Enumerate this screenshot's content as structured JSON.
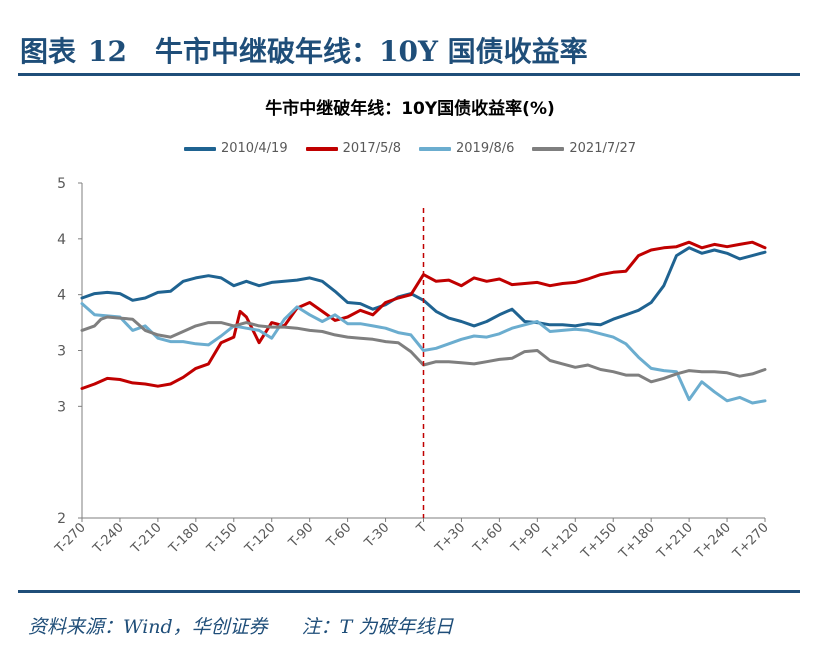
{
  "figure": {
    "label": "图表",
    "number": "12",
    "title": "牛市中继破年线：10Y 国债收益率"
  },
  "source": {
    "text": "资料来源：Wind，华创证券",
    "note": "注：T 为破年线日"
  },
  "chart_data": {
    "type": "line",
    "title": "牛市中继破年线：10Y国债收益率(%)",
    "xlabel": "",
    "ylabel": "",
    "x_range": [
      -270,
      270
    ],
    "ylim": [
      2,
      5
    ],
    "y_ticks": [
      "5",
      "4",
      "4",
      "3",
      "3",
      "2"
    ],
    "y_tick_values": [
      5,
      4.5,
      4,
      3.5,
      3,
      2
    ],
    "x_ticks": [
      "T-270",
      "T-240",
      "T-210",
      "T-180",
      "T-150",
      "T-120",
      "T-90",
      "T-60",
      "T-30",
      "T",
      "T+30",
      "T+60",
      "T+90",
      "T+120",
      "T+150",
      "T+180",
      "T+210",
      "T+240",
      "T+270"
    ],
    "x_tick_values": [
      -270,
      -240,
      -210,
      -180,
      -150,
      -120,
      -90,
      -60,
      -30,
      0,
      30,
      60,
      90,
      120,
      150,
      180,
      210,
      240,
      270
    ],
    "event_marker": {
      "x": 0,
      "style": "dashed",
      "color": "#c00000"
    },
    "grid": false,
    "legend_position": "top",
    "series": [
      {
        "name": "2010/4/19",
        "color": "#1f6391",
        "points": [
          [
            -270,
            3.97
          ],
          [
            -260,
            4.01
          ],
          [
            -250,
            4.02
          ],
          [
            -240,
            4.01
          ],
          [
            -230,
            3.95
          ],
          [
            -220,
            3.97
          ],
          [
            -210,
            4.02
          ],
          [
            -200,
            4.03
          ],
          [
            -190,
            4.12
          ],
          [
            -180,
            4.15
          ],
          [
            -170,
            4.17
          ],
          [
            -160,
            4.15
          ],
          [
            -150,
            4.08
          ],
          [
            -140,
            4.12
          ],
          [
            -130,
            4.08
          ],
          [
            -120,
            4.11
          ],
          [
            -110,
            4.12
          ],
          [
            -100,
            4.13
          ],
          [
            -90,
            4.15
          ],
          [
            -80,
            4.12
          ],
          [
            -70,
            4.03
          ],
          [
            -60,
            3.93
          ],
          [
            -50,
            3.92
          ],
          [
            -40,
            3.87
          ],
          [
            -30,
            3.91
          ],
          [
            -20,
            3.98
          ],
          [
            -10,
            4.01
          ],
          [
            0,
            3.95
          ],
          [
            10,
            3.85
          ],
          [
            20,
            3.79
          ],
          [
            30,
            3.76
          ],
          [
            40,
            3.72
          ],
          [
            50,
            3.76
          ],
          [
            60,
            3.82
          ],
          [
            70,
            3.87
          ],
          [
            80,
            3.76
          ],
          [
            90,
            3.75
          ],
          [
            100,
            3.73
          ],
          [
            110,
            3.73
          ],
          [
            120,
            3.72
          ],
          [
            130,
            3.74
          ],
          [
            140,
            3.73
          ],
          [
            150,
            3.78
          ],
          [
            160,
            3.82
          ],
          [
            170,
            3.86
          ],
          [
            180,
            3.93
          ],
          [
            190,
            4.08
          ],
          [
            200,
            4.35
          ],
          [
            210,
            4.42
          ],
          [
            220,
            4.37
          ],
          [
            230,
            4.4
          ],
          [
            240,
            4.37
          ],
          [
            250,
            4.32
          ],
          [
            260,
            4.35
          ],
          [
            270,
            4.38
          ]
        ]
      },
      {
        "name": "2017/5/8",
        "color": "#c00000",
        "points": [
          [
            -270,
            3.16
          ],
          [
            -260,
            3.2
          ],
          [
            -250,
            3.25
          ],
          [
            -240,
            3.24
          ],
          [
            -230,
            3.21
          ],
          [
            -220,
            3.2
          ],
          [
            -210,
            3.18
          ],
          [
            -200,
            3.2
          ],
          [
            -190,
            3.26
          ],
          [
            -180,
            3.34
          ],
          [
            -170,
            3.38
          ],
          [
            -160,
            3.57
          ],
          [
            -150,
            3.62
          ],
          [
            -145,
            3.85
          ],
          [
            -140,
            3.8
          ],
          [
            -130,
            3.57
          ],
          [
            -120,
            3.75
          ],
          [
            -110,
            3.72
          ],
          [
            -100,
            3.88
          ],
          [
            -90,
            3.93
          ],
          [
            -80,
            3.85
          ],
          [
            -70,
            3.77
          ],
          [
            -60,
            3.8
          ],
          [
            -50,
            3.86
          ],
          [
            -40,
            3.82
          ],
          [
            -30,
            3.93
          ],
          [
            -20,
            3.97
          ],
          [
            -10,
            4.0
          ],
          [
            0,
            4.18
          ],
          [
            10,
            4.12
          ],
          [
            20,
            4.13
          ],
          [
            30,
            4.08
          ],
          [
            40,
            4.15
          ],
          [
            50,
            4.12
          ],
          [
            60,
            4.14
          ],
          [
            70,
            4.09
          ],
          [
            80,
            4.1
          ],
          [
            90,
            4.11
          ],
          [
            100,
            4.08
          ],
          [
            110,
            4.1
          ],
          [
            120,
            4.11
          ],
          [
            130,
            4.14
          ],
          [
            140,
            4.18
          ],
          [
            150,
            4.2
          ],
          [
            160,
            4.21
          ],
          [
            170,
            4.35
          ],
          [
            180,
            4.4
          ],
          [
            190,
            4.42
          ],
          [
            200,
            4.43
          ],
          [
            210,
            4.47
          ],
          [
            220,
            4.42
          ],
          [
            230,
            4.45
          ],
          [
            240,
            4.43
          ],
          [
            250,
            4.45
          ],
          [
            260,
            4.47
          ],
          [
            270,
            4.42
          ]
        ]
      },
      {
        "name": "2019/8/6",
        "color": "#6badcf",
        "points": [
          [
            -270,
            3.92
          ],
          [
            -260,
            3.82
          ],
          [
            -250,
            3.81
          ],
          [
            -240,
            3.8
          ],
          [
            -230,
            3.68
          ],
          [
            -220,
            3.72
          ],
          [
            -210,
            3.61
          ],
          [
            -200,
            3.58
          ],
          [
            -190,
            3.58
          ],
          [
            -180,
            3.56
          ],
          [
            -170,
            3.55
          ],
          [
            -160,
            3.63
          ],
          [
            -150,
            3.72
          ],
          [
            -140,
            3.7
          ],
          [
            -130,
            3.68
          ],
          [
            -120,
            3.61
          ],
          [
            -110,
            3.78
          ],
          [
            -100,
            3.89
          ],
          [
            -90,
            3.82
          ],
          [
            -80,
            3.76
          ],
          [
            -70,
            3.82
          ],
          [
            -60,
            3.74
          ],
          [
            -50,
            3.74
          ],
          [
            -40,
            3.72
          ],
          [
            -30,
            3.7
          ],
          [
            -20,
            3.66
          ],
          [
            -10,
            3.64
          ],
          [
            0,
            3.5
          ],
          [
            10,
            3.52
          ],
          [
            20,
            3.56
          ],
          [
            30,
            3.6
          ],
          [
            40,
            3.63
          ],
          [
            50,
            3.62
          ],
          [
            60,
            3.65
          ],
          [
            70,
            3.7
          ],
          [
            80,
            3.73
          ],
          [
            90,
            3.76
          ],
          [
            100,
            3.67
          ],
          [
            110,
            3.68
          ],
          [
            120,
            3.69
          ],
          [
            130,
            3.68
          ],
          [
            140,
            3.65
          ],
          [
            150,
            3.62
          ],
          [
            160,
            3.56
          ],
          [
            170,
            3.44
          ],
          [
            180,
            3.34
          ],
          [
            190,
            3.32
          ],
          [
            200,
            3.31
          ],
          [
            210,
            3.06
          ],
          [
            220,
            3.22
          ],
          [
            230,
            3.13
          ],
          [
            240,
            3.05
          ],
          [
            250,
            3.08
          ],
          [
            260,
            3.03
          ],
          [
            270,
            3.05
          ]
        ]
      },
      {
        "name": "2021/7/27",
        "color": "#7f7f7f",
        "points": [
          [
            -270,
            3.68
          ],
          [
            -260,
            3.72
          ],
          [
            -255,
            3.78
          ],
          [
            -250,
            3.8
          ],
          [
            -240,
            3.79
          ],
          [
            -230,
            3.78
          ],
          [
            -220,
            3.68
          ],
          [
            -210,
            3.64
          ],
          [
            -200,
            3.62
          ],
          [
            -190,
            3.67
          ],
          [
            -180,
            3.72
          ],
          [
            -170,
            3.75
          ],
          [
            -160,
            3.75
          ],
          [
            -150,
            3.72
          ],
          [
            -140,
            3.75
          ],
          [
            -130,
            3.72
          ],
          [
            -120,
            3.71
          ],
          [
            -110,
            3.71
          ],
          [
            -100,
            3.7
          ],
          [
            -90,
            3.68
          ],
          [
            -80,
            3.67
          ],
          [
            -70,
            3.64
          ],
          [
            -60,
            3.62
          ],
          [
            -50,
            3.61
          ],
          [
            -40,
            3.6
          ],
          [
            -30,
            3.58
          ],
          [
            -20,
            3.57
          ],
          [
            -10,
            3.49
          ],
          [
            0,
            3.37
          ],
          [
            10,
            3.4
          ],
          [
            20,
            3.4
          ],
          [
            30,
            3.39
          ],
          [
            40,
            3.38
          ],
          [
            50,
            3.4
          ],
          [
            60,
            3.42
          ],
          [
            70,
            3.43
          ],
          [
            80,
            3.49
          ],
          [
            90,
            3.5
          ],
          [
            100,
            3.41
          ],
          [
            110,
            3.38
          ],
          [
            120,
            3.35
          ],
          [
            130,
            3.37
          ],
          [
            140,
            3.33
          ],
          [
            150,
            3.31
          ],
          [
            160,
            3.28
          ],
          [
            170,
            3.28
          ],
          [
            180,
            3.22
          ],
          [
            190,
            3.25
          ],
          [
            200,
            3.29
          ],
          [
            210,
            3.32
          ],
          [
            220,
            3.31
          ],
          [
            230,
            3.31
          ],
          [
            240,
            3.3
          ],
          [
            250,
            3.27
          ],
          [
            260,
            3.29
          ],
          [
            270,
            3.33
          ]
        ]
      }
    ]
  }
}
